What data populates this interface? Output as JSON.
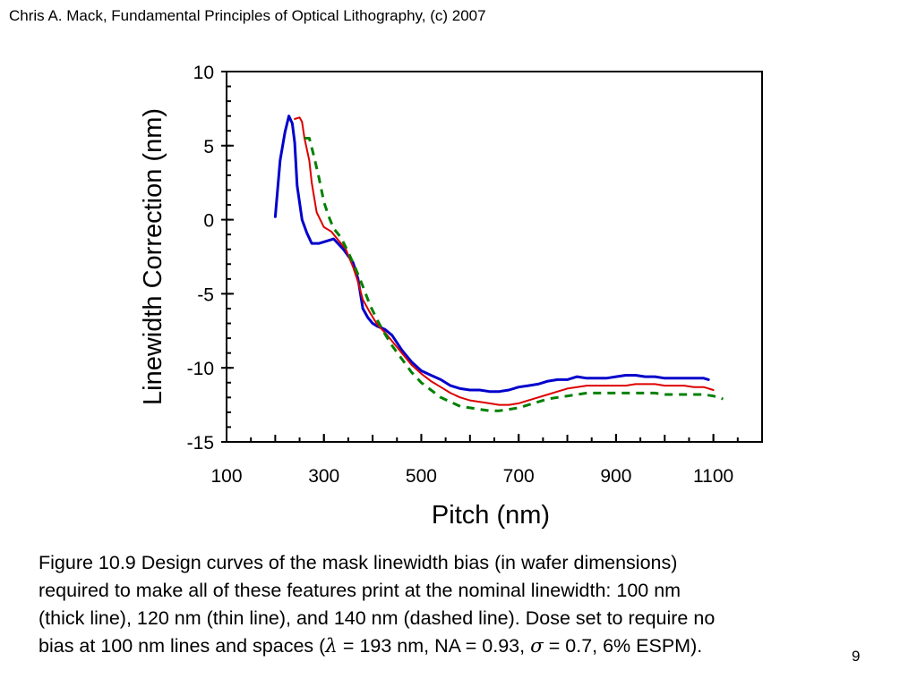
{
  "header": {
    "text": "Chris A. Mack, Fundamental Principles of Optical Lithography, (c) 2007"
  },
  "chart_data": {
    "type": "line",
    "title": "",
    "xlabel": "Pitch (nm)",
    "ylabel": "Linewidth Correction (nm)",
    "xlim": [
      100,
      1200
    ],
    "ylim": [
      -15,
      10
    ],
    "xticks": [
      100,
      300,
      500,
      700,
      900,
      1100
    ],
    "yticks": [
      10,
      5,
      0,
      -5,
      -10,
      -15
    ],
    "grid": false,
    "legend": "none",
    "series": [
      {
        "line_style": "solid",
        "line_weight": "thick",
        "color": "#0000cc",
        "x": [
          200,
          210,
          220,
          228,
          235,
          240,
          245,
          255,
          265,
          275,
          290,
          300,
          320,
          340,
          360,
          370,
          380,
          390,
          400,
          410,
          425,
          440,
          460,
          480,
          500,
          520,
          540,
          560,
          580,
          600,
          620,
          640,
          660,
          680,
          700,
          720,
          740,
          760,
          780,
          800,
          820,
          840,
          860,
          880,
          900,
          920,
          940,
          960,
          980,
          1000,
          1020,
          1040,
          1060,
          1080,
          1090
        ],
        "y": [
          0.2,
          4,
          5.9,
          7,
          6.5,
          5.2,
          2.3,
          0,
          -0.9,
          -1.6,
          -1.6,
          -1.5,
          -1.3,
          -2,
          -2.9,
          -4,
          -6,
          -6.6,
          -7,
          -7.2,
          -7.4,
          -7.8,
          -8.8,
          -9.6,
          -10.2,
          -10.5,
          -10.8,
          -11.2,
          -11.4,
          -11.5,
          -11.5,
          -11.6,
          -11.6,
          -11.5,
          -11.3,
          -11.2,
          -11.1,
          -10.9,
          -10.8,
          -10.8,
          -10.6,
          -10.7,
          -10.7,
          -10.7,
          -10.6,
          -10.5,
          -10.5,
          -10.6,
          -10.6,
          -10.7,
          -10.7,
          -10.7,
          -10.7,
          -10.7,
          -10.8
        ]
      },
      {
        "line_style": "solid",
        "line_weight": "thin",
        "color": "#dd0000",
        "x": [
          240,
          250,
          255,
          260,
          270,
          275,
          285,
          300,
          315,
          330,
          345,
          360,
          370,
          380,
          395,
          410,
          425,
          440,
          460,
          480,
          500,
          520,
          540,
          560,
          580,
          600,
          620,
          640,
          660,
          680,
          700,
          720,
          740,
          760,
          780,
          800,
          820,
          840,
          860,
          880,
          900,
          920,
          940,
          960,
          980,
          1000,
          1020,
          1040,
          1060,
          1080,
          1100
        ],
        "y": [
          6.8,
          6.9,
          6.6,
          5.5,
          4,
          2.5,
          0.5,
          -0.5,
          -0.8,
          -1.4,
          -2,
          -3.2,
          -4.2,
          -5.4,
          -6.3,
          -7.1,
          -7.6,
          -8.2,
          -9,
          -9.8,
          -10.4,
          -10.9,
          -11.3,
          -11.7,
          -12,
          -12.2,
          -12.3,
          -12.4,
          -12.5,
          -12.5,
          -12.4,
          -12.2,
          -12,
          -11.8,
          -11.6,
          -11.4,
          -11.3,
          -11.2,
          -11.2,
          -11.2,
          -11.2,
          -11.2,
          -11.1,
          -11.1,
          -11.1,
          -11.2,
          -11.2,
          -11.2,
          -11.3,
          -11.3,
          -11.5
        ]
      },
      {
        "line_style": "dashed",
        "line_weight": "thick",
        "color": "#008000",
        "x": [
          260,
          270,
          280,
          290,
          300,
          310,
          320,
          335,
          350,
          365,
          380,
          395,
          410,
          425,
          440,
          460,
          480,
          500,
          520,
          540,
          560,
          580,
          600,
          620,
          640,
          660,
          680,
          700,
          720,
          740,
          760,
          780,
          800,
          820,
          840,
          860,
          880,
          900,
          920,
          940,
          960,
          980,
          1000,
          1020,
          1040,
          1060,
          1080,
          1100,
          1120
        ],
        "y": [
          5.5,
          5.5,
          4.2,
          2.8,
          1.2,
          0.2,
          -0.6,
          -1.2,
          -2.2,
          -3.3,
          -4.5,
          -5.8,
          -6.8,
          -7.7,
          -8.5,
          -9.4,
          -10.3,
          -11,
          -11.5,
          -12,
          -12.3,
          -12.6,
          -12.7,
          -12.8,
          -12.9,
          -12.9,
          -12.8,
          -12.7,
          -12.5,
          -12.3,
          -12.1,
          -12,
          -11.9,
          -11.8,
          -11.7,
          -11.7,
          -11.7,
          -11.7,
          -11.7,
          -11.7,
          -11.7,
          -11.7,
          -11.8,
          -11.8,
          -11.8,
          -11.8,
          -11.8,
          -11.9,
          -12.1
        ]
      }
    ]
  },
  "caption": {
    "line1": "Figure 10.9  Design curves of the mask linewidth bias (in wafer dimensions)",
    "line2": "required to make all of these features print at the nominal linewidth:  100 nm",
    "line3": "(thick line), 120 nm (thin line), and 140 nm (dashed line).  Dose set to require no",
    "line4_a": "bias at 100 nm lines and spaces (",
    "lambda": "λ",
    "line4_b": " = 193 nm, NA = 0.93, ",
    "sigma": "σ",
    "line4_c": " = 0.7, 6% ESPM)."
  },
  "page_number": "9"
}
